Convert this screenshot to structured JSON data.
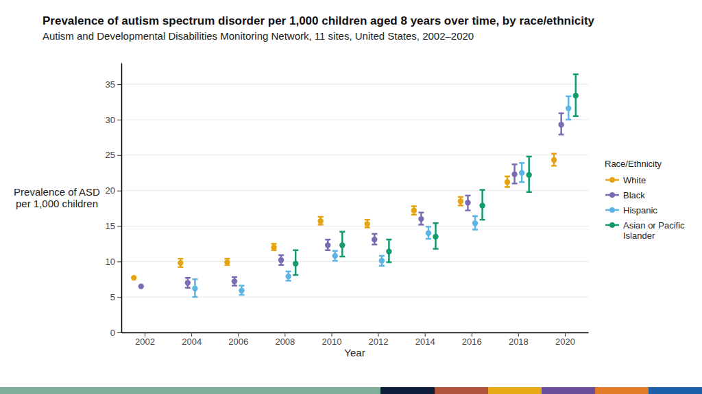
{
  "chart_data": {
    "type": "scatter",
    "title": "Prevalence of autism spectrum disorder per 1,000 children aged 8 years over time, by race/ethnicity",
    "subtitle": "Autism and Developmental Disabilities Monitoring Network, 11 sites, United States, 2002–2020",
    "xlabel": "Year",
    "ylabel": "Prevalence of ASD\nper 1,000 children",
    "legend_title": "Race/Ethnicity",
    "legend": "right",
    "marker": "circle",
    "grid": true,
    "x": [
      2002,
      2004,
      2006,
      2008,
      2010,
      2012,
      2014,
      2016,
      2018,
      2020
    ],
    "xlim": [
      2001,
      2021
    ],
    "xticks": [
      2002,
      2004,
      2006,
      2008,
      2010,
      2012,
      2014,
      2016,
      2018,
      2020
    ],
    "ylim": [
      0,
      38
    ],
    "yticks": [
      0,
      5,
      10,
      15,
      20,
      25,
      30,
      35
    ],
    "series": [
      {
        "name": "White",
        "color": "#E3A312",
        "values": [
          7.7,
          9.8,
          9.9,
          12.0,
          15.7,
          15.3,
          17.2,
          18.5,
          21.2,
          24.3
        ],
        "ci_lower": [
          null,
          9.2,
          9.5,
          11.6,
          15.2,
          14.8,
          16.6,
          17.9,
          20.5,
          23.5
        ],
        "ci_upper": [
          null,
          10.4,
          10.4,
          12.5,
          16.3,
          15.9,
          17.8,
          19.1,
          22.0,
          25.2
        ]
      },
      {
        "name": "Black",
        "color": "#7A6CB2",
        "values": [
          6.5,
          7.0,
          7.2,
          10.2,
          12.3,
          13.1,
          16.0,
          18.3,
          22.3,
          29.3
        ],
        "ci_lower": [
          null,
          6.3,
          6.6,
          9.5,
          11.6,
          12.4,
          15.2,
          17.2,
          21.0,
          27.9
        ],
        "ci_upper": [
          null,
          7.7,
          7.8,
          10.9,
          13.1,
          13.9,
          16.9,
          19.3,
          23.7,
          30.9
        ]
      },
      {
        "name": "Hispanic",
        "color": "#5BB5E6",
        "values": [
          null,
          6.2,
          5.9,
          7.9,
          10.8,
          10.1,
          14.0,
          15.4,
          22.5,
          31.6
        ],
        "ci_lower": [
          null,
          5.0,
          5.3,
          7.3,
          10.1,
          9.4,
          13.2,
          14.5,
          21.2,
          30.0
        ],
        "ci_upper": [
          null,
          7.5,
          6.6,
          8.6,
          11.5,
          10.8,
          14.9,
          16.4,
          23.9,
          33.3
        ]
      },
      {
        "name": "Asian or Pacific Islander",
        "color": "#12996C",
        "values": [
          null,
          null,
          null,
          9.7,
          12.3,
          11.4,
          13.5,
          17.9,
          22.2,
          33.4
        ],
        "ci_lower": [
          null,
          null,
          null,
          8.1,
          10.7,
          9.9,
          11.8,
          15.9,
          19.8,
          30.5
        ],
        "ci_upper": [
          null,
          null,
          null,
          11.6,
          14.2,
          13.1,
          15.4,
          20.1,
          24.8,
          36.4
        ]
      }
    ]
  }
}
